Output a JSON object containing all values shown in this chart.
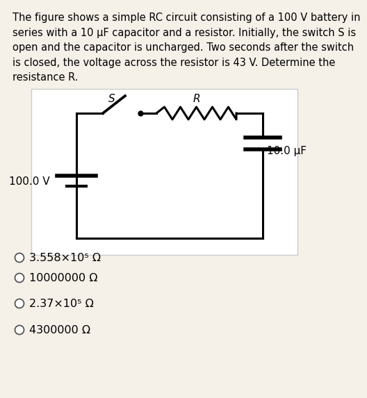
{
  "background_color": "#f5f0e8",
  "circuit_bg": "#ffffff",
  "title_text": "The figure shows a simple RC circuit consisting of a 100 V battery in\nseries with a 10 μF capacitor and a resistor. Initially, the switch S is\nopen and the capacitor is uncharged. Two seconds after the switch\nis closed, the voltage across the resistor is 43 V. Determine the\nresistance R.",
  "circuit_label_S": "S",
  "circuit_label_R": "R",
  "circuit_label_battery": "100.0 V",
  "circuit_label_capacitor": "10.0 μF",
  "options": [
    "3.558×10⁵ Ω",
    "10000000 Ω",
    "2.37×10⁵ Ω",
    "4300000 Ω"
  ],
  "font_size_title": 10.5,
  "font_size_circuit": 11,
  "font_size_options": 11.5
}
